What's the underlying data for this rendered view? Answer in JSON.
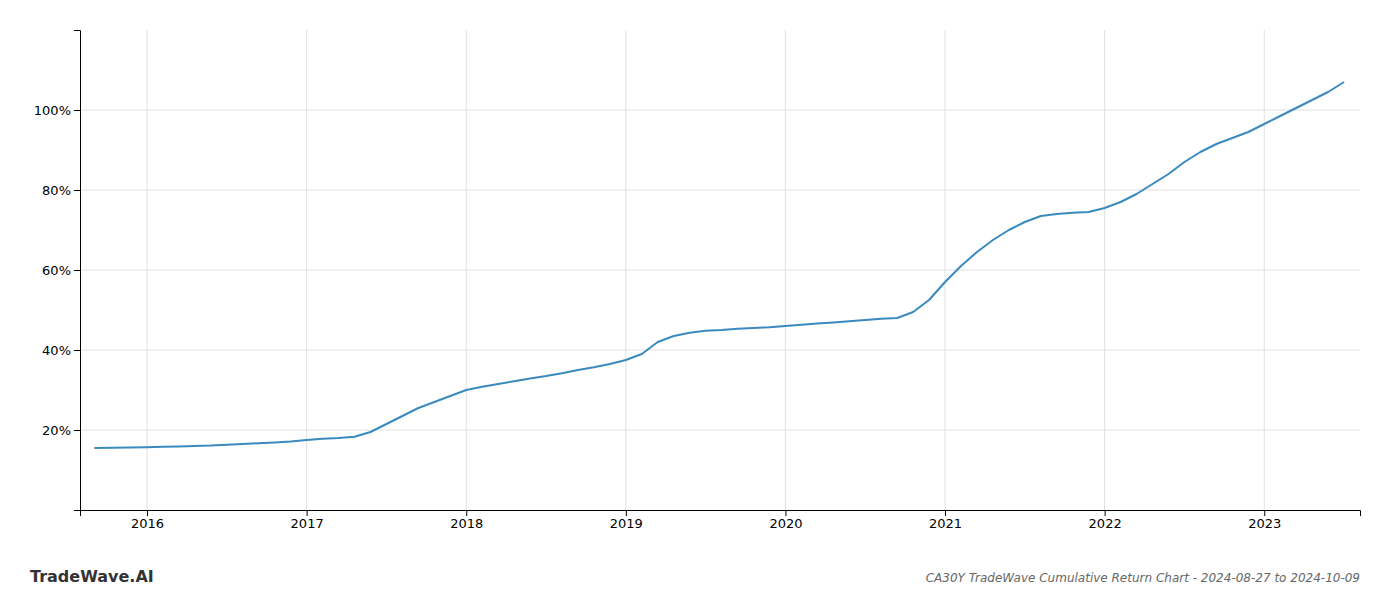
{
  "chart_data": {
    "type": "line",
    "title": "CA30Y TradeWave Cumulative Return Chart - 2024-08-27 to 2024-10-09",
    "annotations": [
      "TradeWave.AI"
    ],
    "color": "#3a8abf",
    "grid": true,
    "x": [
      2015.67,
      2016.0,
      2016.1,
      2016.2,
      2016.3,
      2016.4,
      2016.5,
      2016.6,
      2016.7,
      2016.8,
      2016.9,
      2017.0,
      2017.1,
      2017.2,
      2017.3,
      2017.4,
      2017.5,
      2017.6,
      2017.7,
      2017.8,
      2017.9,
      2018.0,
      2018.1,
      2018.2,
      2018.3,
      2018.4,
      2018.5,
      2018.6,
      2018.7,
      2018.8,
      2018.9,
      2019.0,
      2019.1,
      2019.2,
      2019.3,
      2019.4,
      2019.5,
      2019.6,
      2019.7,
      2019.8,
      2019.9,
      2020.0,
      2020.1,
      2020.2,
      2020.3,
      2020.4,
      2020.5,
      2020.6,
      2020.7,
      2020.8,
      2020.9,
      2021.0,
      2021.1,
      2021.2,
      2021.3,
      2021.4,
      2021.5,
      2021.6,
      2021.7,
      2021.8,
      2021.9,
      2022.0,
      2022.1,
      2022.2,
      2022.3,
      2022.4,
      2022.5,
      2022.6,
      2022.7,
      2022.8,
      2022.9,
      2023.0,
      2023.1,
      2023.2,
      2023.3,
      2023.4,
      2023.5
    ],
    "values": [
      15.5,
      15.7,
      15.8,
      15.9,
      16.0,
      16.1,
      16.3,
      16.5,
      16.7,
      16.9,
      17.1,
      17.5,
      17.8,
      18.0,
      18.3,
      19.5,
      21.5,
      23.5,
      25.5,
      27.0,
      28.5,
      30.0,
      30.8,
      31.5,
      32.2,
      32.9,
      33.5,
      34.2,
      35.0,
      35.7,
      36.5,
      37.5,
      39.0,
      42.0,
      43.5,
      44.3,
      44.8,
      45.0,
      45.3,
      45.5,
      45.7,
      46.0,
      46.3,
      46.6,
      46.9,
      47.2,
      47.5,
      47.8,
      48.0,
      49.5,
      52.5,
      57.0,
      61.0,
      64.5,
      67.5,
      70.0,
      72.0,
      73.5,
      74.0,
      74.3,
      74.5,
      75.5,
      77.0,
      79.0,
      81.5,
      84.0,
      87.0,
      89.5,
      91.5,
      93.0,
      94.5,
      96.5,
      98.5,
      100.5,
      102.5,
      104.5,
      107.0
    ],
    "xlim": [
      2015.58,
      2023.6
    ],
    "xticks": [
      2016,
      2017,
      2018,
      2019,
      2020,
      2021,
      2022,
      2023
    ],
    "ylim": [
      0,
      120
    ],
    "yticks": [
      {
        "value": 20,
        "label": "20%"
      },
      {
        "value": 40,
        "label": "40%"
      },
      {
        "value": 60,
        "label": "60%"
      },
      {
        "value": 80,
        "label": "80%"
      },
      {
        "value": 100,
        "label": "100%"
      }
    ]
  }
}
